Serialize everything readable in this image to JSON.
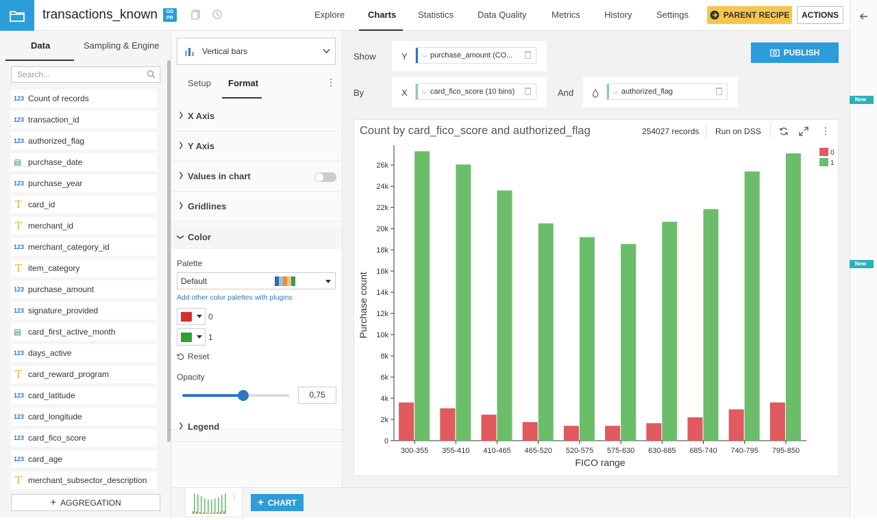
{
  "header": {
    "dataset_name": "transactions_known",
    "gdpr_badge": "GD\nPR",
    "tabs": [
      {
        "label": "Explore"
      },
      {
        "label": "Charts"
      },
      {
        "label": "Statistics"
      },
      {
        "label": "Data Quality"
      },
      {
        "label": "Metrics"
      },
      {
        "label": "History"
      },
      {
        "label": "Settings"
      }
    ],
    "active_tab": "Charts",
    "parent_recipe_label": "PARENT RECIPE",
    "actions_label": "ACTIONS"
  },
  "right_rail": {
    "new_tag": "New"
  },
  "left_panel": {
    "tabs": [
      {
        "label": "Data"
      },
      {
        "label": "Sampling & Engine"
      }
    ],
    "search_placeholder": "Search...",
    "columns": [
      {
        "type": "123",
        "name": "Count of records"
      },
      {
        "type": "123",
        "name": "transaction_id"
      },
      {
        "type": "123",
        "name": "authorized_flag"
      },
      {
        "type": "date",
        "name": "purchase_date"
      },
      {
        "type": "123",
        "name": "purchase_year"
      },
      {
        "type": "T",
        "name": "card_id"
      },
      {
        "type": "T",
        "name": "merchant_id"
      },
      {
        "type": "123",
        "name": "merchant_category_id"
      },
      {
        "type": "T",
        "name": "item_category"
      },
      {
        "type": "123",
        "name": "purchase_amount"
      },
      {
        "type": "123",
        "name": "signature_provided"
      },
      {
        "type": "date",
        "name": "card_first_active_month"
      },
      {
        "type": "123",
        "name": "days_active"
      },
      {
        "type": "T",
        "name": "card_reward_program"
      },
      {
        "type": "123",
        "name": "card_latitude"
      },
      {
        "type": "123",
        "name": "card_longitude"
      },
      {
        "type": "123",
        "name": "card_fico_score"
      },
      {
        "type": "123",
        "name": "card_age"
      },
      {
        "type": "T",
        "name": "merchant_subsector_description"
      }
    ],
    "aggregation_label": "AGGREGATION"
  },
  "middle_panel": {
    "chart_type": "Vertical bars",
    "subtabs": [
      {
        "label": "Setup"
      },
      {
        "label": "Format"
      }
    ],
    "active_subtab": "Format",
    "sections": {
      "x_axis": "X Axis",
      "y_axis": "Y Axis",
      "values_in_chart": "Values in chart",
      "gridlines": "Gridlines",
      "color": "Color",
      "legend": "Legend"
    },
    "values_in_chart_enabled": false,
    "palette_label": "Palette",
    "palette_value": "Default",
    "palette_link": "Add other color palettes with plugins",
    "color_entries": [
      {
        "label": "0",
        "color": "#d62f2f"
      },
      {
        "label": "1",
        "color": "#2f9e3a"
      }
    ],
    "reset_label": "Reset",
    "opacity_label": "Opacity",
    "opacity_value": "0,75",
    "opacity": 0.75
  },
  "shelves": {
    "show_label": "Show",
    "y_axis_letter": "Y",
    "y_measure": "purchase_amount (CO...",
    "by_label": "By",
    "x_axis_letter": "X",
    "x_dimension": "card_fico_score (10 bins)",
    "and_label": "And",
    "color_dimension": "authorized_flag"
  },
  "publish_label": "PUBLISH",
  "chart_header": {
    "title": "Count by card_fico_score and authorized_flag",
    "records": "254027 records",
    "run_on_dss": "Run on DSS"
  },
  "bottom_bar": {
    "new_chart_label": "CHART"
  },
  "chart_data": {
    "type": "bar",
    "categories": [
      "300-355",
      "355-410",
      "410-465",
      "465-520",
      "520-575",
      "575-630",
      "630-685",
      "685-740",
      "740-795",
      "795-850"
    ],
    "series": [
      {
        "name": "0",
        "color": "#e05a5f",
        "values": [
          3600,
          3050,
          2450,
          1750,
          1400,
          1400,
          1650,
          2200,
          2950,
          3600
        ]
      },
      {
        "name": "1",
        "color": "#6bbd6a",
        "values": [
          27300,
          26050,
          23600,
          20500,
          19200,
          18550,
          20650,
          21850,
          25400,
          27100
        ]
      }
    ],
    "xlabel": "FICO range",
    "ylabel": "Purchase count",
    "ylim": [
      0,
      27500
    ],
    "yticks": [
      "0",
      "2k",
      "4k",
      "6k",
      "8k",
      "10k",
      "12k",
      "14k",
      "16k",
      "18k",
      "20k",
      "22k",
      "24k",
      "26k"
    ],
    "legend_position": "top-right",
    "grid": false
  }
}
